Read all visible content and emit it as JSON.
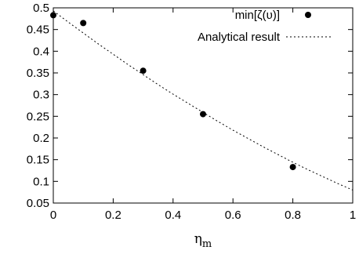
{
  "chart_data": {
    "type": "scatter",
    "xlim": [
      0,
      1
    ],
    "ylim": [
      0.05,
      0.5
    ],
    "x_ticks": [
      "0",
      "0.2",
      "0.4",
      "0.6",
      "0.8",
      "1"
    ],
    "x_tick_values": [
      0,
      0.2,
      0.4,
      0.6,
      0.8,
      1
    ],
    "y_ticks": [
      "0.05",
      "0.1",
      "0.15",
      "0.2",
      "0.25",
      "0.3",
      "0.35",
      "0.4",
      "0.45",
      "0.5"
    ],
    "y_tick_values": [
      0.05,
      0.1,
      0.15,
      0.2,
      0.25,
      0.3,
      0.35,
      0.4,
      0.45,
      0.5
    ],
    "xlabel": "η",
    "xlabel_sub": "m",
    "ylabel": "",
    "grid": false,
    "legend_position": "top-right",
    "series": [
      {
        "name": "min[ζ(υ)]",
        "style": "points",
        "color": "#000000",
        "x": [
          0.0,
          0.1,
          0.3,
          0.5,
          0.8
        ],
        "y": [
          0.483,
          0.465,
          0.355,
          0.255,
          0.133
        ]
      },
      {
        "name": "Analytical result",
        "style": "dashed-line",
        "color": "#000000",
        "x": [
          0.0,
          0.05,
          0.1,
          0.15,
          0.2,
          0.25,
          0.3,
          0.35,
          0.4,
          0.45,
          0.5,
          0.55,
          0.6,
          0.65,
          0.7,
          0.75,
          0.8,
          0.85,
          0.9,
          0.95,
          1.0
        ],
        "y": [
          0.493,
          0.467,
          0.442,
          0.417,
          0.393,
          0.369,
          0.346,
          0.323,
          0.301,
          0.28,
          0.259,
          0.238,
          0.218,
          0.199,
          0.18,
          0.162,
          0.144,
          0.127,
          0.111,
          0.095,
          0.08
        ]
      }
    ]
  }
}
